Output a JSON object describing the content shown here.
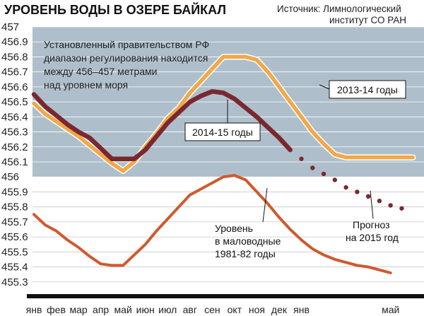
{
  "chart_data": {
    "type": "line",
    "title": "УРОВЕНЬ ВОДЫ В ОЗЕРЕ БАЙКАЛ",
    "source": [
      "Источник: Лимнологический",
      "институт СО РАН"
    ],
    "note": [
      "Установленный правительством РФ",
      "диапазон регулирования находится",
      "между  456–457 метрами",
      "над уровнем моря"
    ],
    "regulation_range": [
      456,
      457
    ],
    "ylim": [
      455.2,
      457
    ],
    "yticks": [
      "457",
      "456.9",
      "456.8",
      "456.7",
      "456.6",
      "456.5",
      "456.4",
      "456.3",
      "456.2",
      "456.1",
      "456",
      "455.9",
      "455.8",
      "455.7",
      "455.6",
      "455.5",
      "455.4",
      "455.3"
    ],
    "xlim": [
      0,
      17.5
    ],
    "xticks": [
      {
        "label": "янв",
        "x": 0
      },
      {
        "label": "фев",
        "x": 1
      },
      {
        "label": "мар",
        "x": 2
      },
      {
        "label": "апр",
        "x": 3
      },
      {
        "label": "май",
        "x": 4
      },
      {
        "label": "июн",
        "x": 5
      },
      {
        "label": "июл",
        "x": 6
      },
      {
        "label": "авг",
        "x": 7
      },
      {
        "label": "сен",
        "x": 8
      },
      {
        "label": "окт",
        "x": 9
      },
      {
        "label": "ноя",
        "x": 10
      },
      {
        "label": "дек",
        "x": 11
      },
      {
        "label": "янв",
        "x": 12
      },
      {
        "label": "май",
        "x": 16
      }
    ],
    "series": [
      {
        "name": "2013-14 годы",
        "color": "#f0a84a",
        "x": [
          0,
          0.5,
          1,
          1.5,
          2,
          2.5,
          3,
          3.5,
          4,
          4.5,
          5,
          5.5,
          6,
          6.5,
          7,
          7.5,
          8,
          8.5,
          9,
          9.5,
          10,
          10.5,
          11,
          11.5,
          12,
          12.5,
          13,
          13.5,
          14,
          14.5,
          15,
          16,
          17
        ],
        "values": [
          456.49,
          456.42,
          456.37,
          456.32,
          456.27,
          456.21,
          456.15,
          456.09,
          456.04,
          456.1,
          456.2,
          456.29,
          456.39,
          456.46,
          456.56,
          456.64,
          456.72,
          456.8,
          456.8,
          456.8,
          456.78,
          456.7,
          456.6,
          456.5,
          456.4,
          456.3,
          456.22,
          456.15,
          456.13,
          456.13,
          456.13,
          456.13,
          456.13
        ]
      },
      {
        "name": "2014-15 годы",
        "color": "#7a2830",
        "x": [
          0,
          0.5,
          1,
          1.5,
          2,
          2.5,
          3,
          3.5,
          4,
          4.5,
          5,
          5.5,
          6,
          6.5,
          7,
          7.5,
          8,
          8.5,
          9,
          9.5,
          10,
          10.5,
          11,
          11.5
        ],
        "values": [
          456.55,
          456.47,
          456.41,
          456.35,
          456.3,
          456.26,
          456.19,
          456.12,
          456.12,
          456.12,
          456.18,
          456.27,
          456.36,
          456.43,
          456.5,
          456.54,
          456.57,
          456.56,
          456.52,
          456.46,
          456.4,
          456.33,
          456.26,
          456.18
        ]
      },
      {
        "name": "Прогноз на 2015 год",
        "color": "#7a2830",
        "dashed": true,
        "x": [
          11.5,
          12,
          12.5,
          13,
          13.5,
          14,
          14.5,
          15,
          15.5,
          16,
          16.5
        ],
        "values": [
          456.18,
          456.12,
          456.06,
          456.02,
          455.98,
          455.93,
          455.9,
          455.87,
          455.84,
          455.81,
          455.79
        ]
      },
      {
        "name": "Уровень в маловодные 1981-82 годы",
        "color": "#cf5a2e",
        "x": [
          0,
          0.5,
          1,
          1.5,
          2,
          2.5,
          3,
          3.5,
          4,
          4.5,
          5,
          5.5,
          6,
          6.5,
          7,
          7.5,
          8,
          8.5,
          9,
          9.5,
          10,
          10.5,
          11,
          11.5,
          12,
          12.5,
          13,
          13.5,
          14,
          14.5,
          15,
          15.5,
          16
        ],
        "values": [
          455.75,
          455.68,
          455.64,
          455.58,
          455.53,
          455.47,
          455.42,
          455.41,
          455.41,
          455.48,
          455.55,
          455.64,
          455.72,
          455.8,
          455.88,
          455.92,
          455.96,
          456.0,
          456.01,
          455.98,
          455.9,
          455.82,
          455.73,
          455.65,
          455.58,
          455.52,
          455.48,
          455.45,
          455.43,
          455.41,
          455.4,
          455.38,
          455.36
        ]
      }
    ],
    "labels": {
      "s1314": "2013-14 годы",
      "s1415": "2014-15 годы",
      "forecast": [
        "Прогноз",
        "на 2015 год"
      ],
      "low": [
        "Уровень",
        "в маловодные",
        "1981-82 годы"
      ]
    },
    "colors": {
      "band": "#aebfcb",
      "lower_bg": "#ffffff",
      "axis": "#111111"
    }
  }
}
